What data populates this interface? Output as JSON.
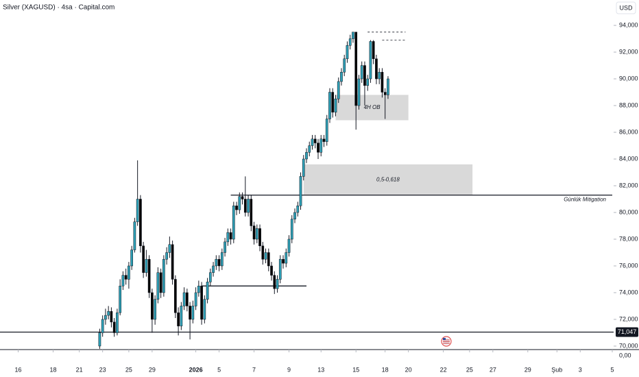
{
  "chart_data": {
    "type": "candlestick",
    "title": "Silver (XAGUSD) · 4sa · Capital.com",
    "currency": "USD",
    "bottom_label": "0,00",
    "up_color": "#2e9fb5",
    "down_color": "#000000",
    "xlim": [
      -6,
      204
    ],
    "ylim": [
      69.74,
      95.9
    ],
    "xticks": [
      {
        "value": 0,
        "label": "16"
      },
      {
        "value": 12,
        "label": "18"
      },
      {
        "value": 21,
        "label": "21"
      },
      {
        "value": 29,
        "label": "23"
      },
      {
        "value": 38,
        "label": "25"
      },
      {
        "value": 46,
        "label": "29"
      },
      {
        "value": 61,
        "label": "2026"
      },
      {
        "value": 69,
        "label": "5"
      },
      {
        "value": 81,
        "label": "7"
      },
      {
        "value": 93,
        "label": "9"
      },
      {
        "value": 104,
        "label": "13"
      },
      {
        "value": 116,
        "label": "15"
      },
      {
        "value": 126,
        "label": "18"
      },
      {
        "value": 134,
        "label": "20"
      },
      {
        "value": 146,
        "label": "22"
      },
      {
        "value": 155,
        "label": "25"
      },
      {
        "value": 163,
        "label": "27"
      },
      {
        "value": 175,
        "label": "29"
      },
      {
        "value": 185,
        "label": "Şub"
      },
      {
        "value": 193,
        "label": "3"
      },
      {
        "value": 204,
        "label": "5"
      }
    ],
    "yticks": [
      {
        "value": 70,
        "label": "70,000"
      },
      {
        "value": 72,
        "label": "72,000"
      },
      {
        "value": 74,
        "label": "74,000"
      },
      {
        "value": 76,
        "label": "76,000"
      },
      {
        "value": 78,
        "label": "78,000"
      },
      {
        "value": 80,
        "label": "80,000"
      },
      {
        "value": 82,
        "label": "82,000"
      },
      {
        "value": 84,
        "label": "84,000"
      },
      {
        "value": 86,
        "label": "86,000"
      },
      {
        "value": 88,
        "label": "88,000"
      },
      {
        "value": 90,
        "label": "90,000"
      },
      {
        "value": 92,
        "label": "92,000"
      },
      {
        "value": 94,
        "label": "94,000"
      }
    ],
    "x": [
      28,
      29,
      30,
      31,
      32,
      33,
      34,
      35,
      36,
      37,
      38,
      39,
      40,
      41,
      42,
      43,
      44,
      45,
      46,
      47,
      48,
      49,
      50,
      51,
      52,
      53,
      54,
      55,
      56,
      57,
      58,
      59,
      60,
      61,
      62,
      63,
      64,
      65,
      66,
      67,
      68,
      69,
      70,
      71,
      72,
      73,
      74,
      75,
      76,
      77,
      78,
      79,
      80,
      81,
      82,
      83,
      84,
      85,
      86,
      87,
      88,
      89,
      90,
      91,
      92,
      93,
      94,
      95,
      96,
      97,
      98,
      99,
      100,
      101,
      102,
      103,
      104,
      105,
      106,
      107,
      108,
      109,
      110,
      111,
      112,
      113,
      114,
      115,
      116,
      117,
      118,
      119,
      120,
      121,
      122,
      123,
      124,
      125,
      126,
      127
    ],
    "open": [
      70.0,
      71.0,
      72.0,
      72.3,
      72.6,
      71.8,
      71.0,
      72.5,
      74.5,
      75.3,
      75.0,
      76.0,
      77.2,
      79.3,
      81.0,
      77.5,
      75.5,
      76.5,
      74.0,
      72.0,
      73.5,
      75.5,
      74.0,
      76.5,
      77.0,
      77.6,
      75.0,
      72.5,
      71.5,
      73.0,
      74.0,
      73.0,
      72.0,
      73.0,
      74.0,
      74.5,
      72.0,
      73.5,
      74.8,
      75.5,
      76.0,
      76.5,
      76.0,
      77.0,
      77.8,
      78.5,
      78.0,
      80.5,
      80.2,
      81.2,
      81.0,
      80.0,
      81.0,
      79.0,
      78.0,
      78.8,
      77.5,
      76.5,
      77.0,
      76.0,
      75.3,
      74.3,
      75.0,
      76.5,
      76.2,
      77.0,
      78.0,
      79.5,
      80.0,
      80.5,
      82.7,
      84.0,
      84.5,
      85.0,
      85.5,
      85.2,
      84.5,
      85.5,
      85.3,
      87.0,
      89.0,
      87.5,
      88.5,
      89.8,
      90.5,
      91.5,
      92.5,
      93.0,
      93.5,
      88.0,
      90.0,
      91.0,
      89.5,
      90.0,
      92.8,
      91.5,
      90.0,
      90.5,
      89.0,
      88.8
    ],
    "high": [
      71.3,
      72.3,
      72.8,
      73.0,
      72.9,
      72.1,
      72.8,
      75.0,
      75.6,
      75.8,
      76.3,
      77.5,
      79.6,
      83.9,
      81.3,
      77.8,
      77.2,
      76.8,
      74.3,
      73.8,
      75.9,
      75.8,
      76.8,
      77.4,
      78.2,
      77.9,
      75.3,
      72.9,
      73.3,
      74.4,
      74.3,
      73.3,
      73.4,
      74.4,
      74.9,
      74.8,
      73.8,
      75.1,
      75.8,
      76.3,
      76.8,
      76.8,
      77.3,
      78.1,
      78.8,
      78.8,
      80.8,
      80.8,
      81.5,
      81.5,
      82.7,
      81.3,
      81.3,
      79.3,
      79.1,
      79.1,
      77.8,
      77.3,
      77.3,
      76.3,
      75.6,
      75.3,
      76.8,
      76.8,
      77.3,
      78.3,
      79.8,
      80.3,
      80.8,
      83.0,
      84.3,
      84.8,
      85.3,
      85.8,
      85.8,
      85.5,
      85.8,
      85.8,
      87.3,
      89.3,
      89.3,
      88.8,
      90.1,
      90.8,
      91.8,
      92.8,
      93.3,
      93.5,
      93.5,
      90.3,
      91.3,
      91.3,
      90.3,
      92.9,
      92.9,
      91.8,
      90.8,
      90.8,
      89.3,
      90.2
    ],
    "low": [
      69.8,
      70.7,
      71.6,
      72.0,
      71.4,
      70.7,
      70.8,
      72.3,
      74.2,
      74.6,
      74.3,
      75.7,
      77.0,
      79.0,
      77.0,
      75.1,
      75.2,
      73.6,
      71.0,
      71.6,
      73.2,
      73.6,
      73.7,
      76.1,
      76.6,
      74.6,
      72.1,
      70.8,
      71.2,
      72.7,
      72.6,
      70.5,
      71.7,
      72.7,
      73.7,
      71.6,
      71.7,
      73.2,
      74.5,
      75.2,
      75.7,
      75.6,
      75.7,
      76.7,
      77.5,
      77.6,
      77.7,
      79.8,
      79.9,
      80.6,
      79.7,
      79.7,
      78.6,
      77.6,
      77.7,
      77.1,
      76.1,
      76.2,
      75.6,
      74.9,
      73.9,
      74.0,
      74.7,
      75.8,
      75.9,
      76.7,
      77.7,
      79.2,
      79.7,
      80.2,
      82.4,
      83.7,
      84.2,
      84.7,
      84.8,
      84.0,
      84.2,
      84.9,
      85.0,
      86.7,
      87.1,
      87.2,
      88.2,
      89.5,
      90.2,
      91.2,
      92.2,
      92.7,
      86.2,
      87.7,
      89.7,
      88.0,
      89.1,
      89.7,
      91.1,
      89.6,
      89.6,
      88.6,
      87.0,
      88.5
    ],
    "close": [
      71.0,
      72.0,
      72.3,
      72.6,
      71.8,
      71.0,
      72.5,
      74.5,
      75.3,
      75.0,
      76.0,
      77.2,
      79.3,
      81.0,
      77.5,
      75.5,
      76.5,
      74.0,
      72.0,
      73.5,
      75.5,
      74.0,
      76.5,
      77.0,
      77.6,
      75.0,
      72.5,
      71.5,
      73.0,
      74.0,
      73.0,
      72.0,
      73.0,
      74.0,
      74.5,
      72.0,
      73.5,
      74.8,
      75.5,
      76.0,
      76.5,
      76.0,
      77.0,
      77.8,
      78.5,
      78.0,
      80.5,
      80.2,
      81.2,
      81.0,
      80.0,
      81.0,
      79.0,
      78.0,
      78.8,
      77.5,
      76.5,
      77.0,
      76.0,
      75.3,
      74.3,
      75.0,
      76.5,
      76.2,
      77.0,
      78.0,
      79.5,
      80.0,
      80.5,
      82.7,
      84.0,
      84.5,
      85.0,
      85.5,
      85.2,
      84.5,
      85.5,
      85.3,
      87.0,
      89.0,
      87.5,
      88.5,
      89.8,
      90.5,
      91.5,
      92.5,
      93.0,
      93.5,
      88.0,
      90.0,
      91.0,
      89.5,
      90.0,
      92.8,
      91.5,
      90.0,
      90.5,
      89.0,
      88.8,
      90.0
    ],
    "zones": [
      {
        "label": "4H OB",
        "x": [
          109,
          134
        ],
        "y": [
          86.9,
          88.8
        ]
      },
      {
        "label": "0,5-0,618",
        "x": [
          98,
          156
        ],
        "y": [
          81.3,
          83.6
        ]
      }
    ],
    "levels": [
      {
        "value": 81.3,
        "x": [
          73,
          204
        ],
        "label": "Günlük Mitigation",
        "dashed": false
      },
      {
        "value": 74.5,
        "x": [
          63,
          99
        ],
        "dashed": false
      },
      {
        "value": 93.5,
        "x": [
          120,
          133
        ],
        "dashed": true
      },
      {
        "value": 92.9,
        "x": [
          125,
          133
        ],
        "dashed": true
      }
    ],
    "price_line": {
      "value": 71.047,
      "label": "71,047"
    }
  }
}
